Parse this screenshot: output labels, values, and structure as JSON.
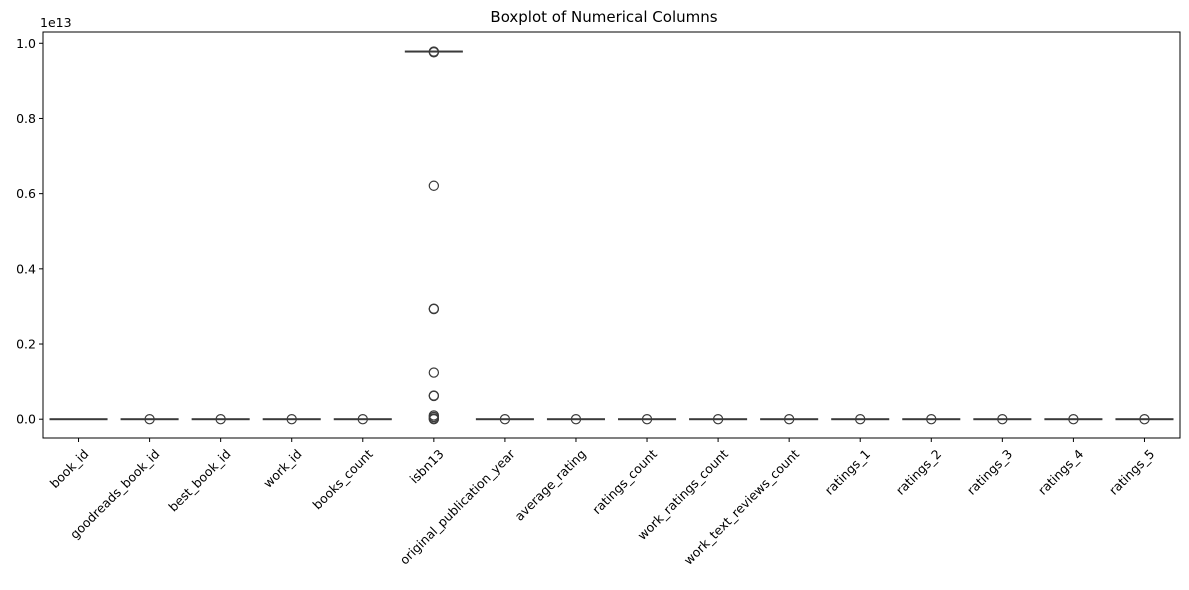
{
  "chart_data": {
    "type": "boxplot",
    "title": "Boxplot of Numerical Columns",
    "xlabel": "",
    "ylabel": "",
    "y_offset_text": "1e13",
    "ylim": [
      -0.05,
      1.03
    ],
    "y_scale_multiplier": 10000000000000.0,
    "yticks": [
      0.0,
      0.2,
      0.4,
      0.6,
      0.8,
      1.0
    ],
    "ytick_labels": [
      "0.0",
      "0.2",
      "0.4",
      "0.6",
      "0.8",
      "1.0"
    ],
    "categories": [
      "book_id",
      "goodreads_book_id",
      "best_book_id",
      "work_id",
      "books_count",
      "isbn13",
      "original_publication_year",
      "average_rating",
      "ratings_count",
      "work_ratings_count",
      "work_text_reviews_count",
      "ratings_1",
      "ratings_2",
      "ratings_3",
      "ratings_4",
      "ratings_5"
    ],
    "boxes": [
      {
        "q1": 0,
        "median": 0,
        "q3": 0,
        "whisker_low": 0,
        "whisker_high": 0,
        "outliers": []
      },
      {
        "q1": 0,
        "median": 0,
        "q3": 0,
        "whisker_low": 0,
        "whisker_high": 0,
        "outliers": [
          0.0
        ]
      },
      {
        "q1": 0,
        "median": 0,
        "q3": 0,
        "whisker_low": 0,
        "whisker_high": 0,
        "outliers": [
          0.0
        ]
      },
      {
        "q1": 0,
        "median": 0,
        "q3": 0,
        "whisker_low": 0,
        "whisker_high": 0,
        "outliers": [
          0.0
        ]
      },
      {
        "q1": 0,
        "median": 0,
        "q3": 0,
        "whisker_low": 0,
        "whisker_high": 0,
        "outliers": [
          0.0
        ]
      },
      {
        "q1": 0.978,
        "median": 0.978,
        "q3": 0.978,
        "whisker_low": 0.978,
        "whisker_high": 0.978,
        "outliers": [
          0.976,
          0.978,
          0.621,
          0.294,
          0.293,
          0.124,
          0.063,
          0.062,
          0.01,
          0.006,
          0.002,
          0.0
        ]
      },
      {
        "q1": 0,
        "median": 0,
        "q3": 0,
        "whisker_low": 0,
        "whisker_high": 0,
        "outliers": [
          0.0
        ]
      },
      {
        "q1": 0,
        "median": 0,
        "q3": 0,
        "whisker_low": 0,
        "whisker_high": 0,
        "outliers": [
          0.0
        ]
      },
      {
        "q1": 0,
        "median": 0,
        "q3": 0,
        "whisker_low": 0,
        "whisker_high": 0,
        "outliers": [
          0.0
        ]
      },
      {
        "q1": 0,
        "median": 0,
        "q3": 0,
        "whisker_low": 0,
        "whisker_high": 0,
        "outliers": [
          0.0
        ]
      },
      {
        "q1": 0,
        "median": 0,
        "q3": 0,
        "whisker_low": 0,
        "whisker_high": 0,
        "outliers": [
          0.0
        ]
      },
      {
        "q1": 0,
        "median": 0,
        "q3": 0,
        "whisker_low": 0,
        "whisker_high": 0,
        "outliers": [
          0.0
        ]
      },
      {
        "q1": 0,
        "median": 0,
        "q3": 0,
        "whisker_low": 0,
        "whisker_high": 0,
        "outliers": [
          0.0
        ]
      },
      {
        "q1": 0,
        "median": 0,
        "q3": 0,
        "whisker_low": 0,
        "whisker_high": 0,
        "outliers": [
          0.0
        ]
      },
      {
        "q1": 0,
        "median": 0,
        "q3": 0,
        "whisker_low": 0,
        "whisker_high": 0,
        "outliers": [
          0.0
        ]
      },
      {
        "q1": 0,
        "median": 0,
        "q3": 0,
        "whisker_low": 0,
        "whisker_high": 0,
        "outliers": [
          0.0
        ]
      }
    ],
    "grid": false,
    "legend": "none",
    "xtick_rotation": 45,
    "colors": {
      "box_line": "#3b3b3b",
      "outlier_edge": "#3b3b3b",
      "axis": "#000000"
    }
  }
}
